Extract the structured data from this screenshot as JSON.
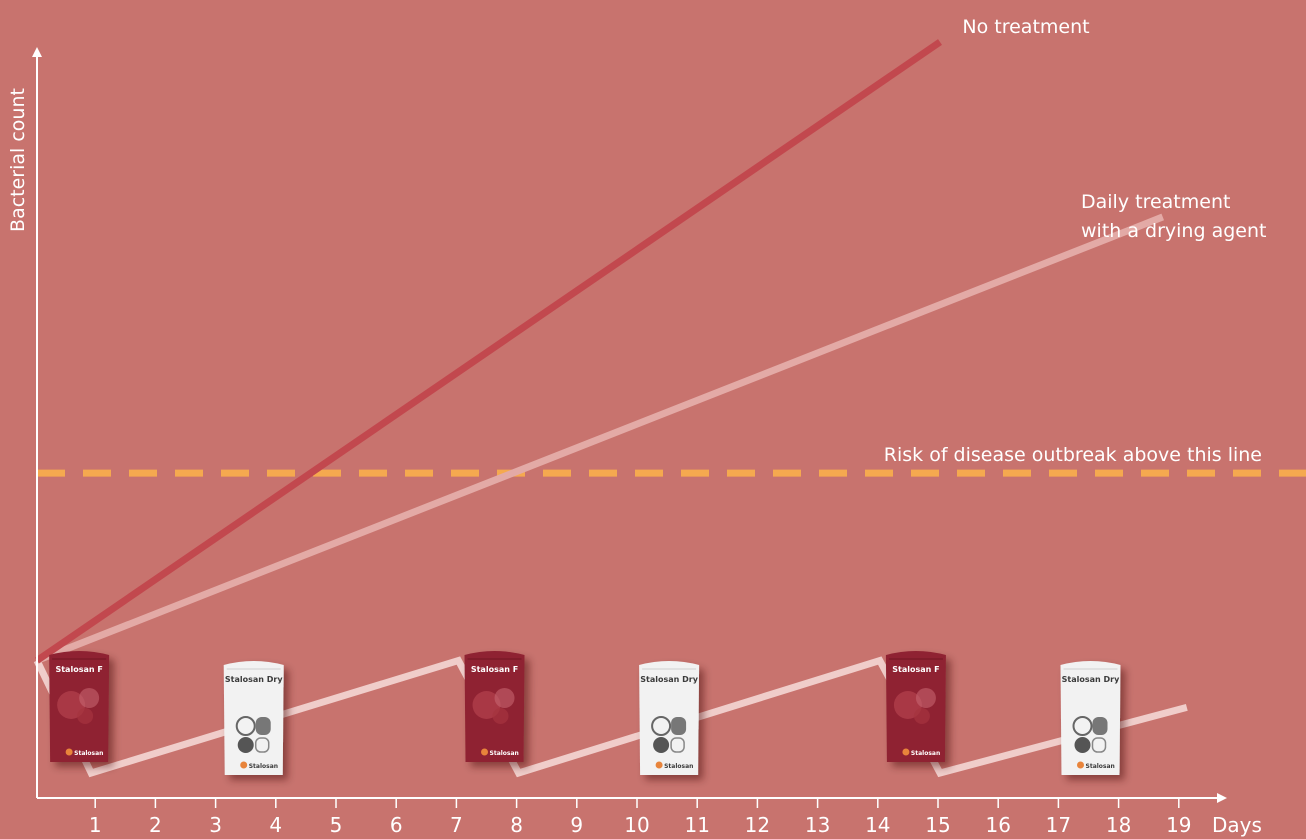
{
  "chart_data": {
    "type": "line",
    "title": "",
    "xlabel": "Days",
    "ylabel": "Bacterial count",
    "x_ticks": [
      1,
      2,
      3,
      4,
      5,
      6,
      7,
      8,
      9,
      10,
      11,
      12,
      13,
      14,
      15,
      16,
      17,
      18,
      19
    ],
    "xlim": [
      0,
      19.8
    ],
    "ylim": [
      0,
      12.5
    ],
    "grid": false,
    "threshold": {
      "label": "Risk of disease outbreak above this line",
      "value": 5.2,
      "color": "#f5a94f"
    },
    "series": [
      {
        "label_lines": [
          "No treatment"
        ],
        "color": "#c2484e",
        "points": [
          [
            0,
            2.2
          ],
          [
            15,
            12.1
          ]
        ]
      },
      {
        "label_lines": [
          "Daily treatment",
          "with a drying agent"
        ],
        "color": "#e3aaa6",
        "points": [
          [
            0,
            2.2
          ],
          [
            18.7,
            9.3
          ]
        ]
      },
      {
        "label_lines": [],
        "color": "#f0cdca",
        "points": [
          [
            0,
            2.2
          ],
          [
            0.9,
            0.4
          ],
          [
            7,
            2.2
          ],
          [
            8,
            0.4
          ],
          [
            14,
            2.2
          ],
          [
            15,
            0.4
          ],
          [
            19.1,
            1.45
          ]
        ]
      }
    ],
    "products": [
      {
        "name": "Stalosan F",
        "brand": "Stalosan",
        "at": 0.7,
        "color": "#8f2231"
      },
      {
        "name": "Stalosan Dry",
        "brand": "Stalosan",
        "at": 3.6,
        "color": "#f2f2f2"
      },
      {
        "name": "Stalosan F",
        "brand": "Stalosan",
        "at": 7.6,
        "color": "#8f2231"
      },
      {
        "name": "Stalosan Dry",
        "brand": "Stalosan",
        "at": 10.5,
        "color": "#f2f2f2"
      },
      {
        "name": "Stalosan F",
        "brand": "Stalosan",
        "at": 14.6,
        "color": "#8f2231"
      },
      {
        "name": "Stalosan Dry",
        "brand": "Stalosan",
        "at": 17.5,
        "color": "#f2f2f2"
      }
    ]
  }
}
